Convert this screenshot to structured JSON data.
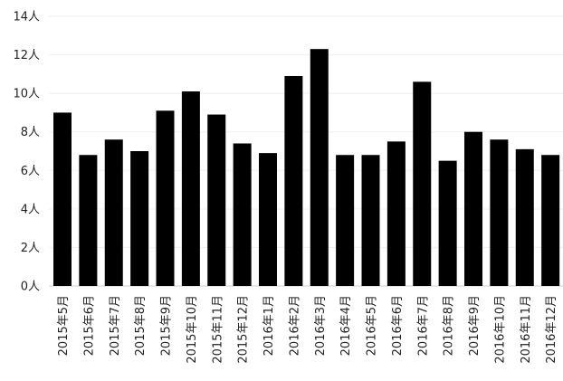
{
  "chart_data": {
    "type": "bar",
    "title": "",
    "xlabel": "",
    "ylabel": "",
    "ylim": [
      0,
      14
    ],
    "ytick_values": [
      0,
      2,
      4,
      6,
      8,
      10,
      12,
      14
    ],
    "ytick_labels": [
      "0人",
      "2人",
      "4人",
      "6人",
      "8人",
      "10人",
      "12人",
      "14人"
    ],
    "grid": true,
    "bar_color": "#000000",
    "categories": [
      "2015年5月",
      "2015年6月",
      "2015年7月",
      "2015年8月",
      "2015年9月",
      "2015年10月",
      "2015年11月",
      "2015年12月",
      "2016年1月",
      "2016年2月",
      "2016年3月",
      "2016年4月",
      "2016年5月",
      "2016年6月",
      "2016年7月",
      "2016年8月",
      "2016年9月",
      "2016年10月",
      "2016年11月",
      "2016年12月"
    ],
    "values": [
      9.0,
      6.8,
      7.6,
      7.0,
      9.1,
      10.1,
      8.9,
      7.4,
      6.9,
      10.9,
      12.3,
      6.8,
      6.8,
      7.5,
      10.6,
      6.5,
      8.0,
      7.6,
      7.1,
      6.8
    ]
  }
}
